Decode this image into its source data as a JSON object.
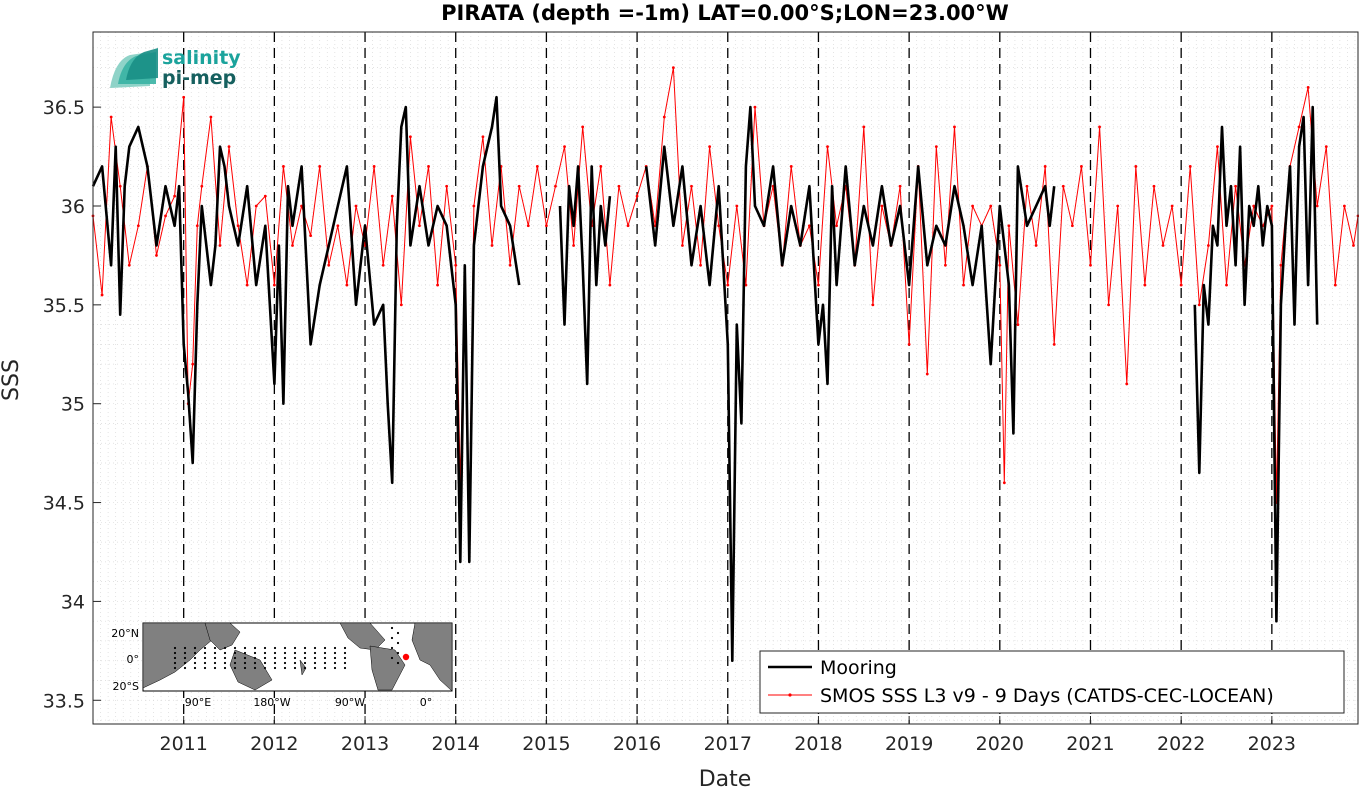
{
  "chart_data": {
    "type": "line",
    "title": "PIRATA (depth =-1m) LAT=0.00°S;LON=23.00°W",
    "xlabel": "Date",
    "ylabel": "SSS",
    "xlim": [
      2010.0,
      2023.95
    ],
    "ylim": [
      33.38,
      36.88
    ],
    "yticks": [
      33.5,
      34,
      34.5,
      35,
      35.5,
      36,
      36.5
    ],
    "ytick_labels": [
      "33.5",
      "34",
      "34.5",
      "35",
      "35.5",
      "36",
      "36.5"
    ],
    "xticks": [
      2011,
      2012,
      2013,
      2014,
      2015,
      2016,
      2017,
      2018,
      2019,
      2020,
      2021,
      2022,
      2023
    ],
    "xtick_labels": [
      "2011",
      "2012",
      "2013",
      "2014",
      "2015",
      "2016",
      "2017",
      "2018",
      "2019",
      "2020",
      "2021",
      "2022",
      "2023"
    ],
    "year_lines": [
      2011,
      2012,
      2013,
      2014,
      2015,
      2016,
      2017,
      2018,
      2019,
      2020,
      2021,
      2022,
      2023
    ],
    "grid": "minor dotted",
    "legend_position": "bottom-right",
    "series": [
      {
        "name": "Mooring",
        "color": "#000000",
        "style": "thick line",
        "segments": [
          {
            "x": [
              2010.0,
              2010.1,
              2010.2,
              2010.25,
              2010.3,
              2010.35,
              2010.4,
              2010.5,
              2010.6,
              2010.7,
              2010.8,
              2010.9,
              2010.95,
              2011.0,
              2011.05,
              2011.1,
              2011.15,
              2011.2,
              2011.3,
              2011.35,
              2011.4,
              2011.45,
              2011.5,
              2011.6,
              2011.7,
              2011.8,
              2011.9,
              2012.0,
              2012.05,
              2012.1,
              2012.15,
              2012.2,
              2012.3,
              2012.4,
              2012.5,
              2012.6,
              2012.7,
              2012.8,
              2012.9,
              2013.0,
              2013.1,
              2013.2,
              2013.25,
              2013.3,
              2013.35,
              2013.4,
              2013.45,
              2013.5,
              2013.6,
              2013.7,
              2013.8,
              2013.9,
              2014.0,
              2014.05,
              2014.1,
              2014.15,
              2014.2,
              2014.3,
              2014.4,
              2014.45,
              2014.5,
              2014.6,
              2014.7
            ],
            "y": [
              36.1,
              36.2,
              35.7,
              36.3,
              35.45,
              36.1,
              36.3,
              36.4,
              36.2,
              35.8,
              36.1,
              35.9,
              36.1,
              35.3,
              35.05,
              34.7,
              35.5,
              36.0,
              35.6,
              35.8,
              36.3,
              36.2,
              36.0,
              35.8,
              36.1,
              35.6,
              35.9,
              35.1,
              35.8,
              35.0,
              36.1,
              35.9,
              36.2,
              35.3,
              35.6,
              35.8,
              36.0,
              36.2,
              35.5,
              35.9,
              35.4,
              35.5,
              35.0,
              34.6,
              35.9,
              36.4,
              36.5,
              35.8,
              36.1,
              35.8,
              36.0,
              35.9,
              35.5,
              34.2,
              35.7,
              34.2,
              35.8,
              36.2,
              36.4,
              36.55,
              36.0,
              35.9,
              35.6
            ]
          },
          {
            "x": [
              2015.15,
              2015.2,
              2015.25,
              2015.3,
              2015.35,
              2015.4,
              2015.45,
              2015.5,
              2015.55,
              2015.6,
              2015.65,
              2015.7
            ],
            "y": [
              36.0,
              35.4,
              36.1,
              35.9,
              36.2,
              35.7,
              35.1,
              36.2,
              35.6,
              36.0,
              35.8,
              36.05
            ]
          },
          {
            "x": [
              2016.1,
              2016.2,
              2016.3,
              2016.4,
              2016.5,
              2016.6,
              2016.7,
              2016.8,
              2016.9,
              2017.0,
              2017.05,
              2017.1,
              2017.15,
              2017.2,
              2017.25,
              2017.3,
              2017.4,
              2017.5,
              2017.6,
              2017.7,
              2017.8,
              2017.9,
              2018.0,
              2018.05,
              2018.1,
              2018.15,
              2018.2,
              2018.3,
              2018.4,
              2018.5,
              2018.6,
              2018.7,
              2018.8,
              2018.9,
              2019.0,
              2019.1,
              2019.2,
              2019.3,
              2019.4,
              2019.5,
              2019.6,
              2019.7,
              2019.8,
              2019.9,
              2020.0,
              2020.1,
              2020.15,
              2020.2,
              2020.3,
              2020.4,
              2020.5,
              2020.55,
              2020.6
            ],
            "y": [
              36.2,
              35.8,
              36.3,
              35.9,
              36.2,
              35.7,
              36.0,
              35.6,
              36.1,
              35.3,
              33.7,
              35.4,
              34.9,
              36.2,
              36.5,
              36.0,
              35.9,
              36.2,
              35.7,
              36.0,
              35.8,
              36.1,
              35.3,
              35.5,
              35.1,
              36.1,
              35.6,
              36.2,
              35.7,
              36.0,
              35.8,
              36.1,
              35.8,
              36.0,
              35.6,
              36.2,
              35.7,
              35.9,
              35.8,
              36.1,
              35.9,
              35.6,
              35.9,
              35.2,
              36.0,
              35.6,
              34.85,
              36.2,
              35.9,
              36.0,
              36.1,
              35.9,
              36.1
            ]
          },
          {
            "x": [
              2022.15,
              2022.2,
              2022.25,
              2022.3,
              2022.35,
              2022.4,
              2022.45,
              2022.5,
              2022.55,
              2022.6,
              2022.65,
              2022.7,
              2022.75,
              2022.8,
              2022.85,
              2022.9,
              2022.95,
              2023.0,
              2023.05,
              2023.1,
              2023.15,
              2023.2,
              2023.25,
              2023.3,
              2023.35,
              2023.4,
              2023.45,
              2023.5
            ],
            "y": [
              35.5,
              34.65,
              35.6,
              35.4,
              35.9,
              35.8,
              36.4,
              35.9,
              36.1,
              35.7,
              36.3,
              35.5,
              36.0,
              35.9,
              36.1,
              35.8,
              36.0,
              35.9,
              33.9,
              35.5,
              35.9,
              36.2,
              35.4,
              36.3,
              36.45,
              35.6,
              36.5,
              35.4
            ]
          }
        ]
      },
      {
        "name": "SMOS SSS L3 v9 - 9 Days (CATDS-CEC-LOCEAN)",
        "color": "#ff0000",
        "style": "thin line with dot markers",
        "x": [
          2010.0,
          2010.1,
          2010.2,
          2010.3,
          2010.4,
          2010.5,
          2010.6,
          2010.7,
          2010.8,
          2010.9,
          2011.0,
          2011.05,
          2011.1,
          2011.15,
          2011.2,
          2011.3,
          2011.4,
          2011.5,
          2011.6,
          2011.7,
          2011.8,
          2011.9,
          2012.0,
          2012.1,
          2012.2,
          2012.3,
          2012.4,
          2012.5,
          2012.6,
          2012.7,
          2012.8,
          2012.9,
          2013.0,
          2013.1,
          2013.2,
          2013.3,
          2013.4,
          2013.5,
          2013.6,
          2013.7,
          2013.8,
          2013.9,
          2014.0,
          2014.05,
          2014.1,
          2014.15,
          2014.2,
          2014.3,
          2014.4,
          2014.5,
          2014.6,
          2014.7,
          2014.8,
          2014.9,
          2015.0,
          2015.1,
          2015.2,
          2015.3,
          2015.4,
          2015.5,
          2015.6,
          2015.7,
          2015.8,
          2015.9,
          2016.0,
          2016.1,
          2016.2,
          2016.3,
          2016.4,
          2016.5,
          2016.6,
          2016.7,
          2016.8,
          2016.9,
          2017.0,
          2017.1,
          2017.2,
          2017.3,
          2017.4,
          2017.5,
          2017.6,
          2017.7,
          2017.8,
          2017.9,
          2018.0,
          2018.1,
          2018.2,
          2018.3,
          2018.4,
          2018.5,
          2018.6,
          2018.7,
          2018.8,
          2018.9,
          2019.0,
          2019.1,
          2019.2,
          2019.3,
          2019.4,
          2019.5,
          2019.6,
          2019.7,
          2019.8,
          2019.9,
          2020.0,
          2020.05,
          2020.1,
          2020.2,
          2020.3,
          2020.4,
          2020.5,
          2020.6,
          2020.7,
          2020.8,
          2020.9,
          2021.0,
          2021.1,
          2021.2,
          2021.3,
          2021.4,
          2021.5,
          2021.6,
          2021.7,
          2021.8,
          2021.9,
          2022.0,
          2022.1,
          2022.2,
          2022.3,
          2022.4,
          2022.5,
          2022.6,
          2022.7,
          2022.8,
          2022.9,
          2023.0,
          2023.05,
          2023.1,
          2023.2,
          2023.3,
          2023.4,
          2023.5,
          2023.6,
          2023.7,
          2023.8,
          2023.9,
          2023.95
        ],
        "y": [
          35.95,
          35.55,
          36.45,
          36.1,
          35.7,
          35.9,
          36.2,
          35.75,
          35.95,
          36.05,
          36.55,
          35.0,
          35.2,
          35.9,
          36.1,
          36.45,
          35.8,
          36.3,
          35.9,
          35.6,
          36.0,
          36.05,
          35.6,
          36.2,
          35.8,
          36.0,
          35.85,
          36.2,
          35.7,
          35.9,
          35.6,
          36.0,
          35.8,
          36.2,
          35.7,
          36.05,
          35.5,
          36.35,
          35.9,
          36.2,
          35.6,
          36.1,
          35.7,
          34.6,
          35.6,
          34.4,
          36.0,
          36.35,
          35.8,
          36.2,
          35.7,
          36.1,
          35.9,
          36.2,
          35.9,
          36.1,
          36.3,
          35.8,
          36.4,
          35.9,
          36.2,
          35.6,
          36.1,
          35.9,
          36.05,
          36.2,
          35.9,
          36.45,
          36.7,
          35.8,
          36.1,
          35.7,
          36.3,
          35.9,
          35.6,
          36.0,
          35.6,
          36.5,
          35.9,
          36.1,
          35.7,
          36.2,
          35.8,
          35.9,
          35.6,
          36.3,
          35.9,
          36.1,
          35.7,
          36.4,
          35.5,
          36.0,
          35.8,
          36.1,
          35.3,
          36.2,
          35.15,
          36.3,
          35.7,
          36.4,
          35.6,
          36.0,
          35.9,
          36.0,
          35.7,
          34.6,
          35.9,
          35.4,
          36.1,
          35.8,
          36.2,
          35.3,
          36.1,
          35.9,
          36.2,
          35.7,
          36.4,
          35.5,
          36.0,
          35.1,
          36.2,
          35.6,
          36.1,
          35.8,
          36.0,
          35.6,
          36.2,
          35.5,
          35.8,
          36.3,
          35.6,
          36.1,
          35.7,
          36.0,
          35.9,
          36.0,
          34.5,
          35.7,
          36.2,
          36.4,
          36.6,
          36.0,
          36.3,
          35.6,
          36.0,
          35.8,
          35.95
        ]
      }
    ]
  },
  "logo": {
    "line1": "salinity",
    "line2": "pi-mep"
  },
  "inset_map": {
    "lat_labels": [
      "20°N",
      "0°",
      "20°S"
    ],
    "lon_labels": [
      "90°E",
      "180°W",
      "90°W",
      "0°"
    ],
    "highlight_color": "#ff0000"
  }
}
